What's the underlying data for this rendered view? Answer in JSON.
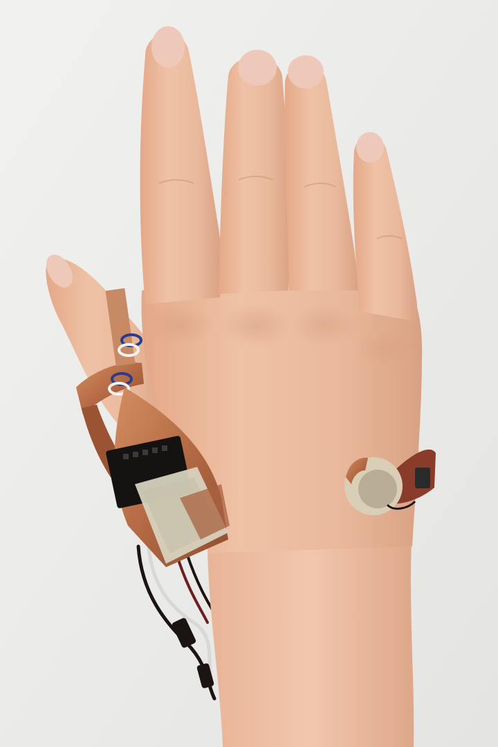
{
  "scene": {
    "background_color": "#ebebe9",
    "skin_color": "#e8b89c",
    "skin_shadow_color": "#d49a7c",
    "copper_color": "#c07a52",
    "nail_color": "#eec8b8",
    "tape_color": "#d9d6c2",
    "wire_colors": [
      "#1c1412",
      "#6b1f1f",
      "#d8d8d8",
      "#2a3c8c"
    ]
  }
}
